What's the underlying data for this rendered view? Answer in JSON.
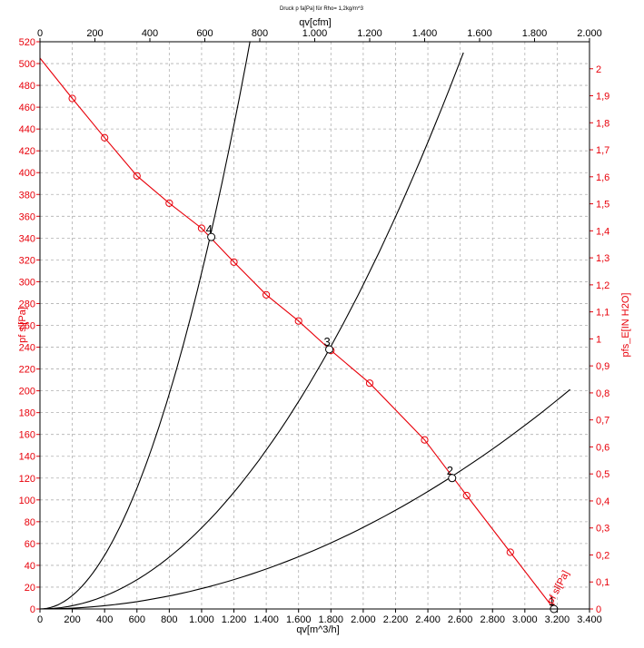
{
  "chart_data": {
    "type": "line",
    "title": "Druck p fa[Pa] für Rho= 1,2kg/m^3",
    "xlabel_bottom": "qv[m^3/h]",
    "xlabel_top": "qv[cfm]",
    "ylabel_left": "pf sl[Pa]",
    "ylabel_right": "pfs_E[IN H2O]",
    "curve_label": "pf sl[Pa]",
    "x_bottom_range": [
      0,
      3400
    ],
    "x_top_range": [
      0,
      2000
    ],
    "y_left_range": [
      0,
      520
    ],
    "y_right_range": [
      0,
      2.1
    ],
    "grid": true,
    "x_bottom_ticks": [
      "0",
      "200",
      "400",
      "600",
      "800",
      "1.000",
      "1.200",
      "1.400",
      "1.600",
      "1.800",
      "2.000",
      "2.200",
      "2.400",
      "2.600",
      "2.800",
      "3.000",
      "3.200",
      "3.400"
    ],
    "x_top_ticks": [
      "0",
      "200",
      "400",
      "600",
      "800",
      "1.000",
      "1.200",
      "1.400",
      "1.600",
      "1.800",
      "2.000"
    ],
    "y_left_ticks": [
      "0",
      "20",
      "40",
      "60",
      "80",
      "100",
      "120",
      "140",
      "160",
      "180",
      "200",
      "220",
      "240",
      "260",
      "280",
      "300",
      "320",
      "340",
      "360",
      "380",
      "400",
      "420",
      "440",
      "460",
      "480",
      "500",
      "520"
    ],
    "y_right_ticks": [
      "0",
      "0,1",
      "0,2",
      "0,3",
      "0,4",
      "0,5",
      "0,6",
      "0,7",
      "0,8",
      "0,9",
      "1",
      "1,1",
      "1,2",
      "1,3",
      "1,4",
      "1,5",
      "1,6",
      "1,7",
      "1,8",
      "1,9",
      "2"
    ],
    "fan_curve": {
      "color": "#e8000a",
      "x": [
        0,
        200,
        400,
        600,
        800,
        1000,
        1200,
        1400,
        1600,
        1800,
        2040,
        2380,
        2640,
        2910,
        3180
      ],
      "y": [
        505,
        468,
        432,
        397,
        372,
        349,
        318,
        288,
        264,
        237,
        207,
        155,
        104,
        52,
        0
      ]
    },
    "fan_markers": {
      "x": [
        200,
        400,
        600,
        800,
        1000,
        1200,
        1400,
        1600,
        1800,
        2040,
        2380,
        2640,
        2910
      ],
      "y": [
        468,
        432,
        397,
        372,
        349,
        318,
        288,
        264,
        237,
        207,
        155,
        104,
        52
      ]
    },
    "system_curves": [
      {
        "k": 1.87e-05,
        "x_max": 3280
      },
      {
        "k": 7.43e-05,
        "x_max": 2620
      },
      {
        "k": 0.000308,
        "x_max": 1300
      }
    ],
    "operating_points": [
      {
        "label": "1",
        "x": 3180,
        "y": 0
      },
      {
        "label": "2",
        "x": 2550,
        "y": 120
      },
      {
        "label": "3",
        "x": 1790,
        "y": 238
      },
      {
        "label": "4",
        "x": 1060,
        "y": 341
      }
    ]
  }
}
